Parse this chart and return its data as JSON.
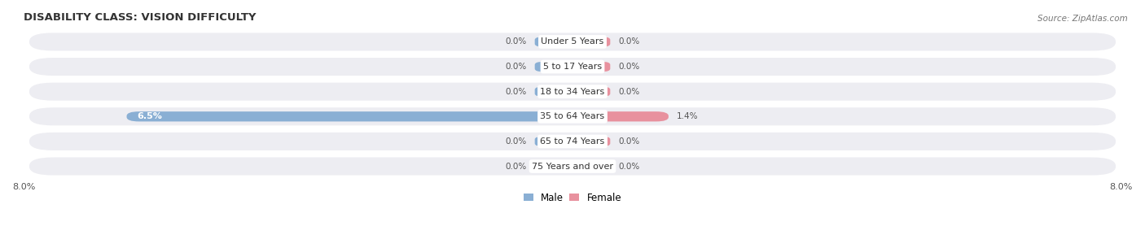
{
  "title": "DISABILITY CLASS: VISION DIFFICULTY",
  "source": "Source: ZipAtlas.com",
  "categories": [
    "Under 5 Years",
    "5 to 17 Years",
    "18 to 34 Years",
    "35 to 64 Years",
    "65 to 74 Years",
    "75 Years and over"
  ],
  "male_values": [
    0.0,
    0.0,
    0.0,
    6.5,
    0.0,
    0.0
  ],
  "female_values": [
    0.0,
    0.0,
    0.0,
    1.4,
    0.0,
    0.0
  ],
  "x_max": 8.0,
  "male_color": "#8aafd4",
  "female_color": "#e8919e",
  "bar_bg_color": "#ededf2",
  "title_color": "#333333",
  "value_color": "#555555",
  "legend_male_color": "#8aafd4",
  "legend_female_color": "#e8919e",
  "figsize": [
    14.06,
    3.05
  ],
  "dpi": 100
}
